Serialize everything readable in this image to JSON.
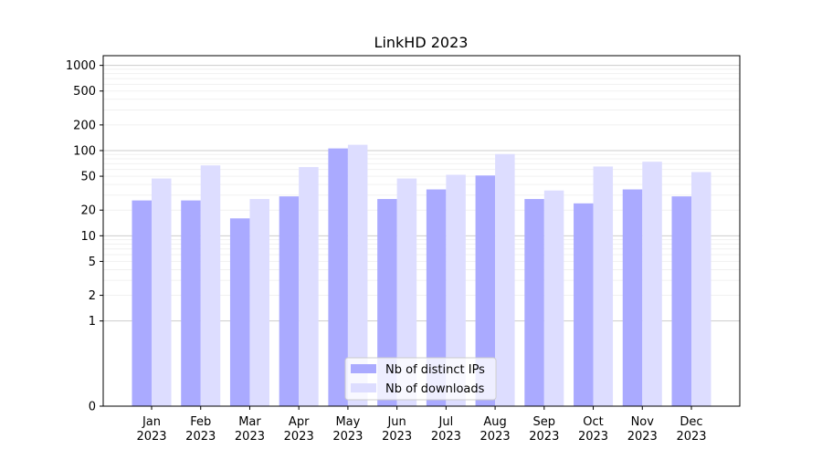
{
  "chart_data": {
    "type": "bar",
    "title": "LinkHD 2023",
    "xlabel": "",
    "ylabel": "",
    "yscale": "symlog",
    "ylim": [
      0,
      1300
    ],
    "yticks": [
      0,
      1,
      2,
      5,
      10,
      20,
      50,
      100,
      200,
      500,
      1000
    ],
    "categories": [
      "Jan\n2023",
      "Feb\n2023",
      "Mar\n2023",
      "Apr\n2023",
      "May\n2023",
      "Jun\n2023",
      "Jul\n2023",
      "Aug\n2023",
      "Sep\n2023",
      "Oct\n2023",
      "Nov\n2023",
      "Dec\n2023"
    ],
    "series": [
      {
        "name": "Nb of distinct IPs",
        "color": "#aaaaff",
        "values": [
          26,
          26,
          16,
          29,
          106,
          27,
          35,
          51,
          27,
          24,
          35,
          29
        ]
      },
      {
        "name": "Nb of downloads",
        "color": "#ddddff",
        "values": [
          47,
          67,
          27,
          64,
          117,
          47,
          52,
          91,
          34,
          65,
          74,
          56
        ]
      }
    ],
    "grid": true,
    "legend_position": "bottom-center"
  }
}
